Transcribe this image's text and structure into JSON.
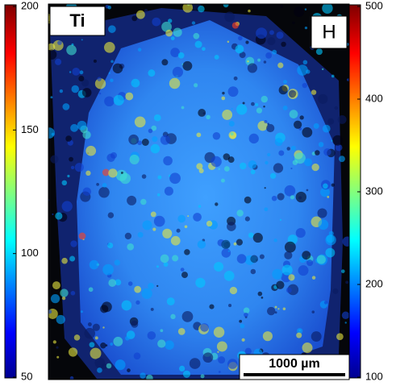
{
  "left_colorbar": {
    "ticks": [
      50,
      100,
      150,
      200
    ]
  },
  "right_colorbar": {
    "ticks": [
      100,
      200,
      300,
      400,
      500
    ]
  },
  "panel": {
    "element_label": "Ti",
    "panel_label": "H",
    "scale_bar": "1000 µm"
  }
}
